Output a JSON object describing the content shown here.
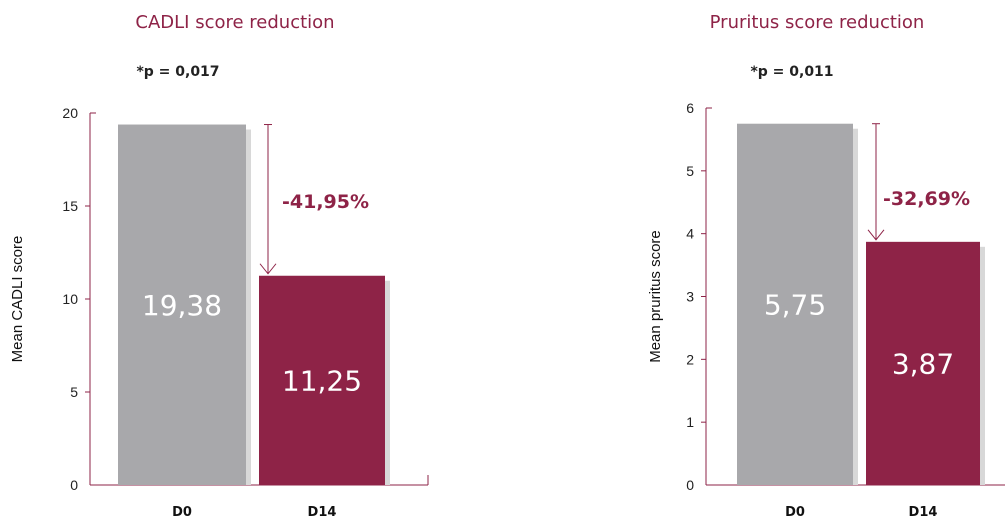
{
  "colors": {
    "accent": "#8e2347",
    "baseline_bar": "#a8a8ab",
    "shadow": "#d8d8d8"
  },
  "chart_data": [
    {
      "type": "bar",
      "title": "CADLI score reduction",
      "annotation": "*p = 0,017",
      "ylabel": "Mean CADLI score",
      "categories": [
        "D0",
        "D14"
      ],
      "values": [
        19.38,
        11.25
      ],
      "value_labels": [
        "19,38",
        "11,25"
      ],
      "yticks": [
        "0",
        "5",
        "10",
        "15",
        "20"
      ],
      "ylim": [
        0,
        20
      ],
      "reduction_label": "-41,95%",
      "bar_colors": [
        "#a8a8ab",
        "#8e2347"
      ]
    },
    {
      "type": "bar",
      "title": "Pruritus score reduction",
      "annotation": "*p = 0,011",
      "ylabel": "Mean pruritus score",
      "categories": [
        "D0",
        "D14"
      ],
      "values": [
        5.75,
        3.87
      ],
      "value_labels": [
        "5,75",
        "3,87"
      ],
      "yticks": [
        "0",
        "1",
        "2",
        "3",
        "4",
        "5",
        "6"
      ],
      "ylim": [
        0,
        6
      ],
      "reduction_label": "-32,69%",
      "bar_colors": [
        "#a8a8ab",
        "#8e2347"
      ]
    }
  ]
}
